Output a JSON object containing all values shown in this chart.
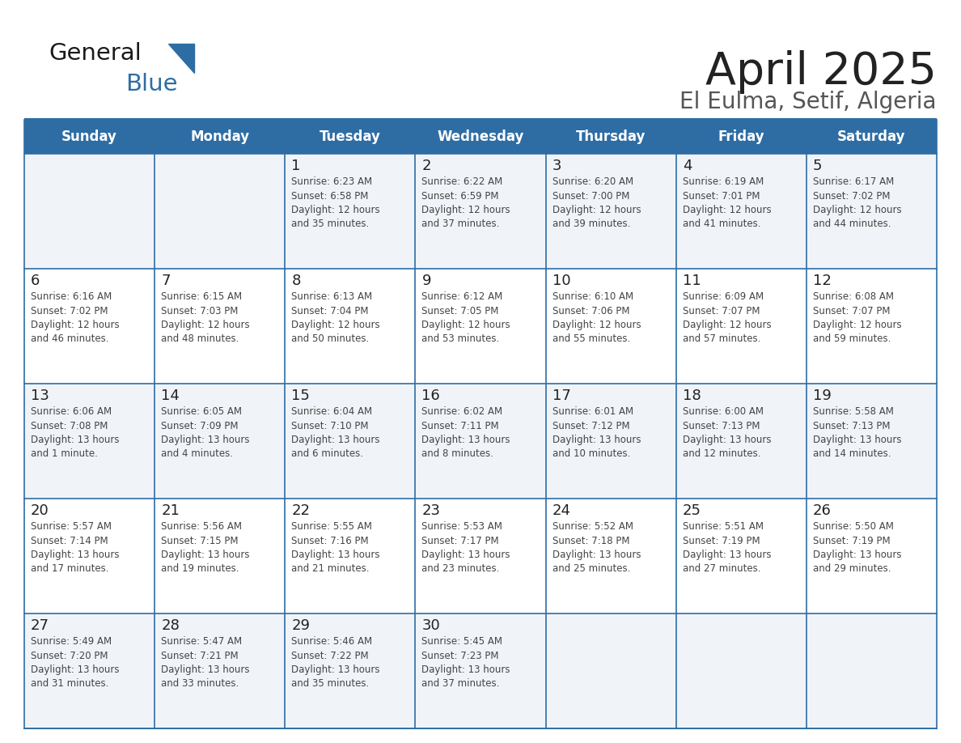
{
  "title": "April 2025",
  "subtitle": "El Eulma, Setif, Algeria",
  "days_of_week": [
    "Sunday",
    "Monday",
    "Tuesday",
    "Wednesday",
    "Thursday",
    "Friday",
    "Saturday"
  ],
  "header_bg": "#2E6DA4",
  "header_text_color": "#FFFFFF",
  "cell_bg_odd": "#F0F4F8",
  "cell_bg_even": "#FFFFFF",
  "border_color": "#2E6DA4",
  "day_number_color": "#222222",
  "cell_text_color": "#444444",
  "title_color": "#222222",
  "subtitle_color": "#555555",
  "logo_general_color": "#1a1a1a",
  "logo_blue_color": "#2E6DA4",
  "weeks": [
    [
      {
        "date": "",
        "info": ""
      },
      {
        "date": "",
        "info": ""
      },
      {
        "date": "1",
        "info": "Sunrise: 6:23 AM\nSunset: 6:58 PM\nDaylight: 12 hours\nand 35 minutes."
      },
      {
        "date": "2",
        "info": "Sunrise: 6:22 AM\nSunset: 6:59 PM\nDaylight: 12 hours\nand 37 minutes."
      },
      {
        "date": "3",
        "info": "Sunrise: 6:20 AM\nSunset: 7:00 PM\nDaylight: 12 hours\nand 39 minutes."
      },
      {
        "date": "4",
        "info": "Sunrise: 6:19 AM\nSunset: 7:01 PM\nDaylight: 12 hours\nand 41 minutes."
      },
      {
        "date": "5",
        "info": "Sunrise: 6:17 AM\nSunset: 7:02 PM\nDaylight: 12 hours\nand 44 minutes."
      }
    ],
    [
      {
        "date": "6",
        "info": "Sunrise: 6:16 AM\nSunset: 7:02 PM\nDaylight: 12 hours\nand 46 minutes."
      },
      {
        "date": "7",
        "info": "Sunrise: 6:15 AM\nSunset: 7:03 PM\nDaylight: 12 hours\nand 48 minutes."
      },
      {
        "date": "8",
        "info": "Sunrise: 6:13 AM\nSunset: 7:04 PM\nDaylight: 12 hours\nand 50 minutes."
      },
      {
        "date": "9",
        "info": "Sunrise: 6:12 AM\nSunset: 7:05 PM\nDaylight: 12 hours\nand 53 minutes."
      },
      {
        "date": "10",
        "info": "Sunrise: 6:10 AM\nSunset: 7:06 PM\nDaylight: 12 hours\nand 55 minutes."
      },
      {
        "date": "11",
        "info": "Sunrise: 6:09 AM\nSunset: 7:07 PM\nDaylight: 12 hours\nand 57 minutes."
      },
      {
        "date": "12",
        "info": "Sunrise: 6:08 AM\nSunset: 7:07 PM\nDaylight: 12 hours\nand 59 minutes."
      }
    ],
    [
      {
        "date": "13",
        "info": "Sunrise: 6:06 AM\nSunset: 7:08 PM\nDaylight: 13 hours\nand 1 minute."
      },
      {
        "date": "14",
        "info": "Sunrise: 6:05 AM\nSunset: 7:09 PM\nDaylight: 13 hours\nand 4 minutes."
      },
      {
        "date": "15",
        "info": "Sunrise: 6:04 AM\nSunset: 7:10 PM\nDaylight: 13 hours\nand 6 minutes."
      },
      {
        "date": "16",
        "info": "Sunrise: 6:02 AM\nSunset: 7:11 PM\nDaylight: 13 hours\nand 8 minutes."
      },
      {
        "date": "17",
        "info": "Sunrise: 6:01 AM\nSunset: 7:12 PM\nDaylight: 13 hours\nand 10 minutes."
      },
      {
        "date": "18",
        "info": "Sunrise: 6:00 AM\nSunset: 7:13 PM\nDaylight: 13 hours\nand 12 minutes."
      },
      {
        "date": "19",
        "info": "Sunrise: 5:58 AM\nSunset: 7:13 PM\nDaylight: 13 hours\nand 14 minutes."
      }
    ],
    [
      {
        "date": "20",
        "info": "Sunrise: 5:57 AM\nSunset: 7:14 PM\nDaylight: 13 hours\nand 17 minutes."
      },
      {
        "date": "21",
        "info": "Sunrise: 5:56 AM\nSunset: 7:15 PM\nDaylight: 13 hours\nand 19 minutes."
      },
      {
        "date": "22",
        "info": "Sunrise: 5:55 AM\nSunset: 7:16 PM\nDaylight: 13 hours\nand 21 minutes."
      },
      {
        "date": "23",
        "info": "Sunrise: 5:53 AM\nSunset: 7:17 PM\nDaylight: 13 hours\nand 23 minutes."
      },
      {
        "date": "24",
        "info": "Sunrise: 5:52 AM\nSunset: 7:18 PM\nDaylight: 13 hours\nand 25 minutes."
      },
      {
        "date": "25",
        "info": "Sunrise: 5:51 AM\nSunset: 7:19 PM\nDaylight: 13 hours\nand 27 minutes."
      },
      {
        "date": "26",
        "info": "Sunrise: 5:50 AM\nSunset: 7:19 PM\nDaylight: 13 hours\nand 29 minutes."
      }
    ],
    [
      {
        "date": "27",
        "info": "Sunrise: 5:49 AM\nSunset: 7:20 PM\nDaylight: 13 hours\nand 31 minutes."
      },
      {
        "date": "28",
        "info": "Sunrise: 5:47 AM\nSunset: 7:21 PM\nDaylight: 13 hours\nand 33 minutes."
      },
      {
        "date": "29",
        "info": "Sunrise: 5:46 AM\nSunset: 7:22 PM\nDaylight: 13 hours\nand 35 minutes."
      },
      {
        "date": "30",
        "info": "Sunrise: 5:45 AM\nSunset: 7:23 PM\nDaylight: 13 hours\nand 37 minutes."
      },
      {
        "date": "",
        "info": ""
      },
      {
        "date": "",
        "info": ""
      },
      {
        "date": "",
        "info": ""
      }
    ]
  ]
}
